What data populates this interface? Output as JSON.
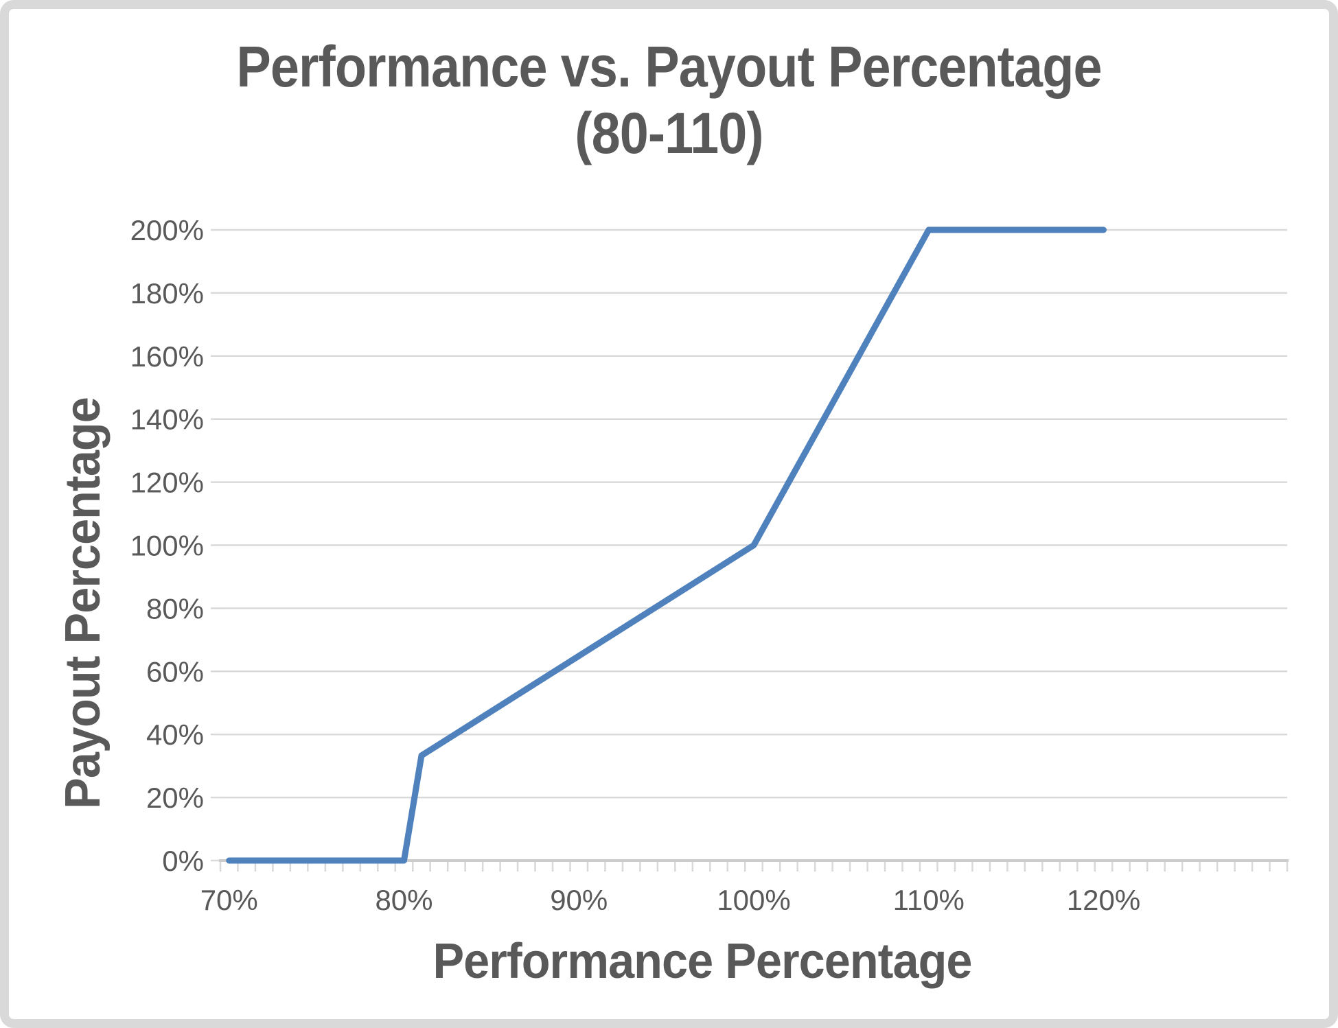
{
  "window": {
    "background": "#FFFFFF",
    "frame_border_color": "#D9D9D9"
  },
  "chart_data": {
    "type": "line",
    "title": "Performance vs. Payout Percentage (80-110)",
    "title_lines": [
      "Performance vs. Payout Percentage",
      "(80-110)"
    ],
    "xlabel": "Performance Percentage",
    "ylabel": "Payout Percentage",
    "xlim": [
      69.5,
      130.5
    ],
    "ylim": [
      0,
      200
    ],
    "grid": "horizontal-major",
    "legend": "none",
    "x_minor_tick_step": 1,
    "x_ticks": [
      {
        "value": 70,
        "label": "70%"
      },
      {
        "value": 80,
        "label": "80%"
      },
      {
        "value": 90,
        "label": "90%"
      },
      {
        "value": 100,
        "label": "100%"
      },
      {
        "value": 110,
        "label": "110%"
      },
      {
        "value": 120,
        "label": "120%"
      }
    ],
    "y_ticks": [
      {
        "value": 0,
        "label": "0%"
      },
      {
        "value": 20,
        "label": "20%"
      },
      {
        "value": 40,
        "label": "40%"
      },
      {
        "value": 60,
        "label": "60%"
      },
      {
        "value": 80,
        "label": "80%"
      },
      {
        "value": 100,
        "label": "100%"
      },
      {
        "value": 120,
        "label": "120%"
      },
      {
        "value": 140,
        "label": "140%"
      },
      {
        "value": 160,
        "label": "160%"
      },
      {
        "value": 180,
        "label": "180%"
      },
      {
        "value": 200,
        "label": "200%"
      }
    ],
    "series": [
      {
        "name": "Payout Percentage",
        "color": "#4F81BD",
        "points": [
          [
            70,
            0
          ],
          [
            80,
            0
          ],
          [
            81,
            33.3
          ],
          [
            100,
            100
          ],
          [
            110,
            200
          ],
          [
            120,
            200
          ]
        ]
      }
    ],
    "colors": {
      "line": "#4F81BD",
      "title_text": "#595959",
      "tick_text": "#595959",
      "gridline": "#D9D9D9",
      "axis_line": "#CCCCCC",
      "frame_border": "#D9D9D9"
    }
  }
}
